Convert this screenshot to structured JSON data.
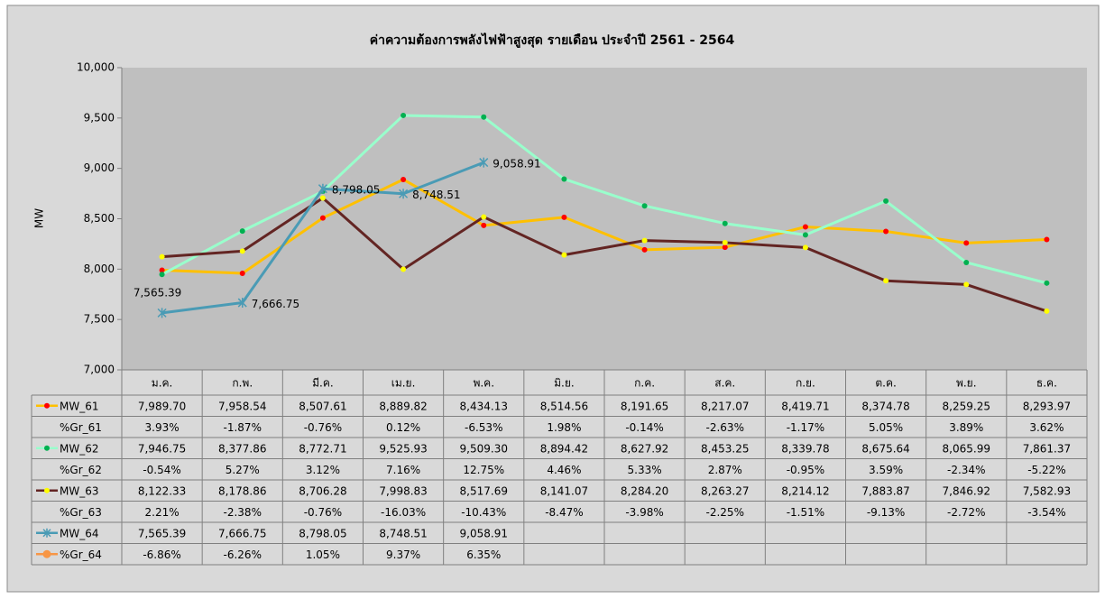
{
  "chart_data": {
    "type": "line",
    "title": "ค่าความต้องการพลังไฟฟ้าสูงสุด รายเดือน ประจำปี 2561 - 2564",
    "y_label": "MW",
    "categories": [
      "ม.ค.",
      "ก.พ.",
      "มี.ค.",
      "เม.ย.",
      "พ.ค.",
      "มิ.ย.",
      "ก.ค.",
      "ส.ค.",
      "ก.ย.",
      "ต.ค.",
      "พ.ย.",
      "ธ.ค."
    ],
    "ylim": [
      7000,
      10000
    ],
    "yticks": [
      {
        "value": 7000,
        "label": "7,000"
      },
      {
        "value": 7500,
        "label": "7,500"
      },
      {
        "value": 8000,
        "label": "8,000"
      },
      {
        "value": 8500,
        "label": "8,500"
      },
      {
        "value": 9000,
        "label": "9,000"
      },
      {
        "value": 9500,
        "label": "9,500"
      },
      {
        "value": 10000,
        "label": "10,000"
      }
    ],
    "grid": false,
    "data_table": true,
    "series": [
      {
        "name": "MW_61",
        "color": "#ffc000",
        "marker": "circle",
        "marker_color": "#ff0000",
        "values": [
          7989.7,
          7958.54,
          8507.61,
          8889.82,
          8434.13,
          8514.56,
          8191.65,
          8217.07,
          8419.71,
          8374.78,
          8259.25,
          8293.97
        ],
        "value_labels": [
          "7,989.70",
          "7,958.54",
          "8,507.61",
          "8,889.82",
          "8,434.13",
          "8,514.56",
          "8,191.65",
          "8,217.07",
          "8,419.71",
          "8,374.78",
          "8,259.25",
          "8,293.97"
        ]
      },
      {
        "name": "%Gr_61",
        "show_line": false,
        "values": [
          3.93,
          -1.87,
          -0.76,
          0.12,
          -6.53,
          1.98,
          -0.14,
          -2.63,
          -1.17,
          5.05,
          3.89,
          3.62
        ],
        "value_labels": [
          "3.93%",
          "-1.87%",
          "-0.76%",
          "0.12%",
          "-6.53%",
          "1.98%",
          "-0.14%",
          "-2.63%",
          "-1.17%",
          "5.05%",
          "3.89%",
          "3.62%"
        ]
      },
      {
        "name": "MW_62",
        "color": "#99ffcc",
        "marker": "circle",
        "marker_color": "#00b050",
        "values": [
          7946.75,
          8377.86,
          8772.71,
          9525.93,
          9509.3,
          8894.42,
          8627.92,
          8453.25,
          8339.78,
          8675.64,
          8065.99,
          7861.37
        ],
        "value_labels": [
          "7,946.75",
          "8,377.86",
          "8,772.71",
          "9,525.93",
          "9,509.30",
          "8,894.42",
          "8,627.92",
          "8,453.25",
          "8,339.78",
          "8,675.64",
          "8,065.99",
          "7,861.37"
        ]
      },
      {
        "name": "%Gr_62",
        "show_line": false,
        "values": [
          -0.54,
          5.27,
          3.12,
          7.16,
          12.75,
          4.46,
          5.33,
          2.87,
          -0.95,
          3.59,
          -2.34,
          -5.22
        ],
        "value_labels": [
          "-0.54%",
          "5.27%",
          "3.12%",
          "7.16%",
          "12.75%",
          "4.46%",
          "5.33%",
          "2.87%",
          "-0.95%",
          "3.59%",
          "-2.34%",
          "-5.22%"
        ]
      },
      {
        "name": "MW_63",
        "color": "#632523",
        "marker": "circle",
        "marker_color": "#ffff00",
        "values": [
          8122.33,
          8178.86,
          8706.28,
          7998.83,
          8517.69,
          8141.07,
          8284.2,
          8263.27,
          8214.12,
          7883.87,
          7846.92,
          7582.93
        ],
        "value_labels": [
          "8,122.33",
          "8,178.86",
          "8,706.28",
          "7,998.83",
          "8,517.69",
          "8,141.07",
          "8,284.20",
          "8,263.27",
          "8,214.12",
          "7,883.87",
          "7,846.92",
          "7,582.93"
        ]
      },
      {
        "name": "%Gr_63",
        "show_line": false,
        "values": [
          2.21,
          -2.38,
          -0.76,
          -16.03,
          -10.43,
          -8.47,
          -3.98,
          -2.25,
          -1.51,
          -9.13,
          -2.72,
          -3.54
        ],
        "value_labels": [
          "2.21%",
          "-2.38%",
          "-0.76%",
          "-16.03%",
          "-10.43%",
          "-8.47%",
          "-3.98%",
          "-2.25%",
          "-1.51%",
          "-9.13%",
          "-2.72%",
          "-3.54%"
        ]
      },
      {
        "name": "MW_64",
        "color": "#4a9bb5",
        "marker": "x",
        "marker_color": "#4a9bb5",
        "data_labels": true,
        "values": [
          7565.39,
          7666.75,
          8798.05,
          8748.51,
          9058.91,
          null,
          null,
          null,
          null,
          null,
          null,
          null
        ],
        "value_labels": [
          "7,565.39",
          "7,666.75",
          "8,798.05",
          "8,748.51",
          "9,058.91",
          null,
          null,
          null,
          null,
          null,
          null,
          null
        ]
      },
      {
        "name": "%Gr_64",
        "color": "#f79646",
        "marker": "circle",
        "marker_color": "#f79646",
        "show_line": false,
        "values": [
          -6.86,
          -6.26,
          1.05,
          9.37,
          6.35,
          null,
          null,
          null,
          null,
          null,
          null,
          null
        ],
        "value_labels": [
          "-6.86%",
          "-6.26%",
          "1.05%",
          "9.37%",
          "6.35%",
          null,
          null,
          null,
          null,
          null,
          null,
          null
        ]
      }
    ]
  }
}
